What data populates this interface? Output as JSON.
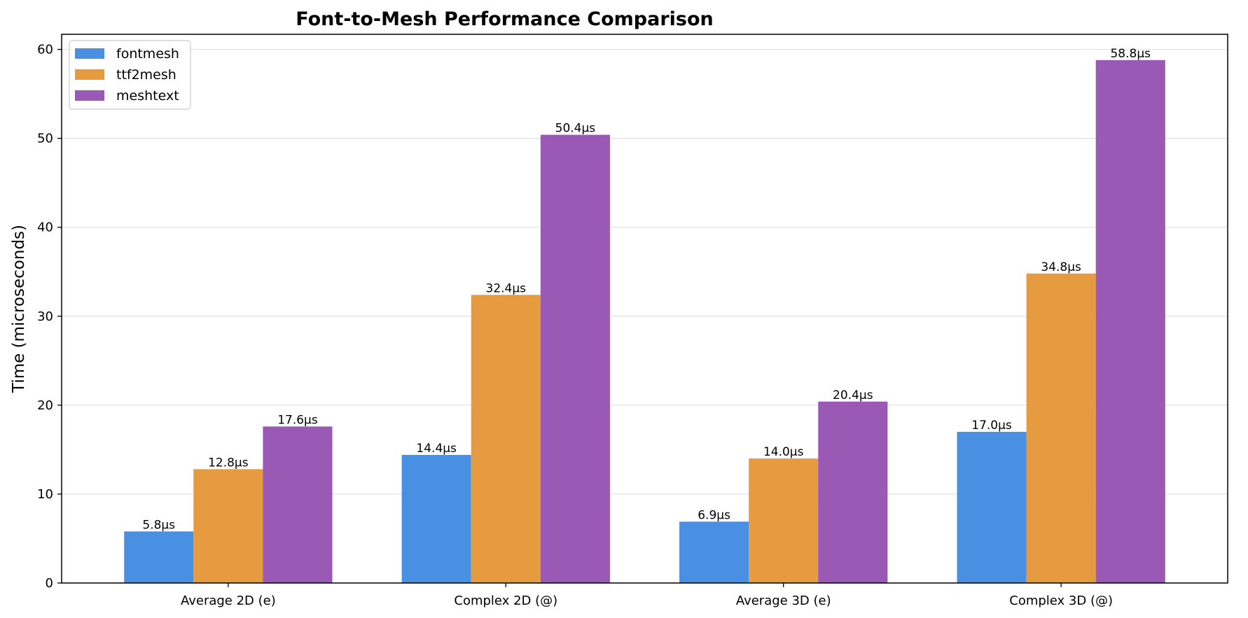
{
  "chart_data": {
    "type": "bar",
    "title": "Font-to-Mesh Performance Comparison",
    "xlabel": "",
    "ylabel": "Time (microseconds)",
    "categories": [
      "Average 2D (e)",
      "Complex 2D (@)",
      "Average 3D (e)",
      "Complex 3D (@)"
    ],
    "series": [
      {
        "name": "fontmesh",
        "color": "#4a90e2",
        "values": [
          5.8,
          14.4,
          6.9,
          17.0
        ],
        "labels": [
          "5.8µs",
          "14.4µs",
          "6.9µs",
          "17.0µs"
        ]
      },
      {
        "name": "ttf2mesh",
        "color": "#e69b40",
        "values": [
          12.8,
          32.4,
          14.0,
          34.8
        ],
        "labels": [
          "12.8µs",
          "32.4µs",
          "14.0µs",
          "34.8µs"
        ]
      },
      {
        "name": "meshtext",
        "color": "#9b59b6",
        "values": [
          17.6,
          50.4,
          20.4,
          58.8
        ],
        "labels": [
          "17.6µs",
          "50.4µs",
          "20.4µs",
          "58.8µs"
        ]
      }
    ],
    "ylim": [
      0,
      61.7
    ],
    "yticks": [
      0,
      10,
      20,
      30,
      40,
      50,
      60
    ],
    "grid": "y",
    "legend_position": "top-left"
  }
}
